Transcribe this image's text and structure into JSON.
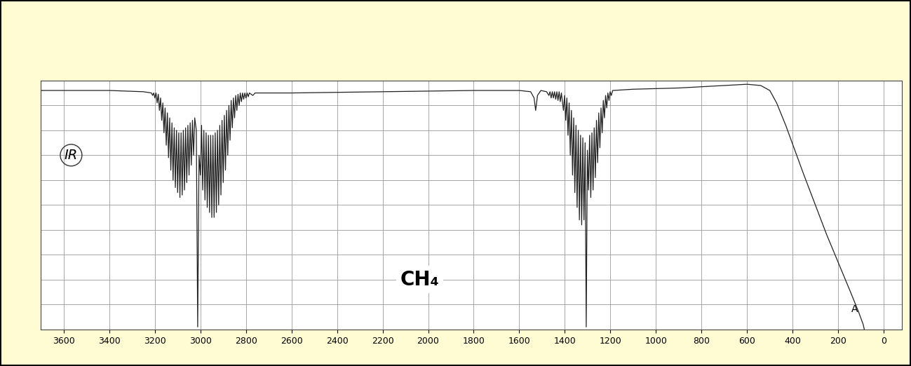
{
  "chart_data": {
    "type": "line",
    "annotations": [
      "IR",
      "CH₄",
      "A"
    ],
    "x": [
      3700,
      3400,
      3250,
      3215,
      3210,
      3205,
      3200,
      3195,
      3190,
      3185,
      3180,
      3175,
      3170,
      3165,
      3160,
      3155,
      3150,
      3145,
      3140,
      3135,
      3130,
      3125,
      3120,
      3115,
      3110,
      3105,
      3100,
      3095,
      3090,
      3085,
      3080,
      3075,
      3070,
      3065,
      3060,
      3055,
      3050,
      3045,
      3040,
      3035,
      3030,
      3025,
      3018,
      3012,
      3006,
      3000,
      2995,
      2990,
      2985,
      2980,
      2975,
      2970,
      2965,
      2960,
      2955,
      2950,
      2945,
      2940,
      2935,
      2930,
      2925,
      2920,
      2915,
      2910,
      2905,
      2900,
      2895,
      2890,
      2885,
      2880,
      2875,
      2870,
      2865,
      2860,
      2855,
      2850,
      2845,
      2840,
      2835,
      2830,
      2825,
      2820,
      2815,
      2810,
      2805,
      2800,
      2795,
      2790,
      2785,
      2770,
      2760,
      2600,
      2200,
      1800,
      1600,
      1550,
      1535,
      1528,
      1520,
      1505,
      1480,
      1470,
      1465,
      1460,
      1455,
      1450,
      1445,
      1440,
      1435,
      1430,
      1425,
      1420,
      1415,
      1406,
      1401,
      1396,
      1391,
      1386,
      1381,
      1376,
      1371,
      1366,
      1361,
      1356,
      1351,
      1346,
      1341,
      1336,
      1331,
      1326,
      1321,
      1316,
      1311,
      1306,
      1301,
      1296,
      1291,
      1286,
      1281,
      1276,
      1271,
      1266,
      1261,
      1256,
      1251,
      1246,
      1241,
      1236,
      1231,
      1226,
      1221,
      1216,
      1211,
      1206,
      1201,
      1196,
      1190,
      1100,
      900,
      700,
      600,
      540,
      500,
      470,
      430,
      390,
      350,
      300,
      250,
      200,
      150,
      110,
      90,
      85
    ],
    "values": [
      96,
      96,
      95.5,
      95,
      94,
      95,
      93,
      95,
      91,
      94.5,
      88,
      93,
      84,
      91,
      79,
      89,
      74,
      87,
      69,
      85,
      64,
      83,
      60,
      81,
      57,
      80,
      55,
      79,
      53,
      79,
      54,
      80,
      56,
      81,
      59,
      82,
      62,
      83,
      66,
      84,
      70,
      85,
      80,
      1,
      70,
      62,
      82,
      56,
      80,
      52,
      79,
      49,
      78,
      47,
      78,
      45,
      78,
      45,
      79,
      47,
      80,
      50,
      82,
      54,
      84,
      59,
      86,
      64,
      88,
      70,
      90,
      76,
      92,
      81,
      93,
      85,
      94,
      88,
      94.5,
      90,
      95,
      91.5,
      95,
      92.5,
      95,
      93,
      95,
      93.5,
      95,
      94,
      95,
      95,
      95.5,
      96,
      96,
      95.5,
      93,
      88,
      94,
      96,
      95.5,
      94,
      95.5,
      93,
      95.5,
      93,
      95.5,
      92.5,
      95.5,
      92,
      95.5,
      91.5,
      95,
      88,
      94,
      84,
      93,
      78,
      91,
      70,
      88,
      62,
      85,
      55,
      82,
      49,
      80,
      44,
      78,
      42,
      77,
      44,
      75,
      1,
      72,
      56,
      78,
      53,
      79,
      56,
      81,
      61,
      84,
      67,
      87,
      73,
      89,
      79,
      92,
      85,
      94,
      89,
      95,
      92,
      95.5,
      94,
      96,
      96.5,
      97,
      98,
      98.5,
      98,
      96,
      91,
      82,
      72,
      62,
      50,
      38,
      27,
      16,
      7,
      2,
      0
    ],
    "color": "#222222",
    "xlim": [
      3700,
      -80
    ],
    "xticks": [
      3600,
      3400,
      3200,
      3000,
      2800,
      2600,
      2400,
      2200,
      2000,
      1800,
      1600,
      1400,
      1200,
      1000,
      800,
      600,
      400,
      200,
      0
    ],
    "ylim": [
      0,
      100
    ],
    "yticks": [
      0,
      10,
      20,
      30,
      40,
      50,
      60,
      70,
      80,
      90,
      100
    ],
    "grid": true,
    "tick_labels": "x"
  }
}
